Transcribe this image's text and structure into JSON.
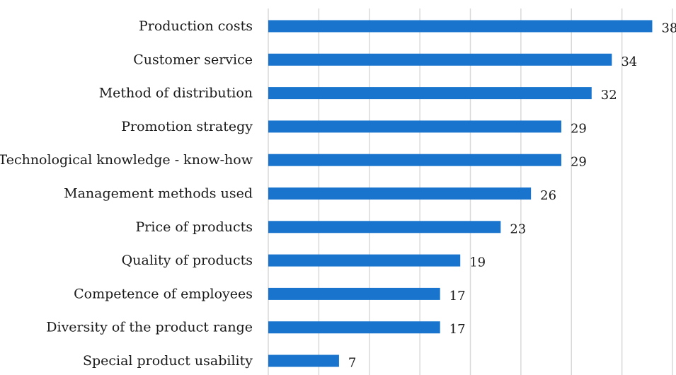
{
  "chart_data": {
    "type": "bar",
    "orientation": "horizontal",
    "categories": [
      "Production costs",
      "Customer service",
      "Method of distribution",
      "Promotion strategy",
      "Technological knowledge - know-how",
      "Management methods used",
      "Price of products",
      "Quality of products",
      "Competence of employees",
      "Diversity of the product range",
      "Special product usability"
    ],
    "values": [
      38,
      34,
      32,
      29,
      29,
      26,
      23,
      19,
      17,
      17,
      7
    ],
    "title": "",
    "xlabel": "",
    "ylabel": "",
    "xlim": [
      0,
      40
    ],
    "grid": true,
    "bar_color": "#1874CD",
    "data_labels": true
  }
}
